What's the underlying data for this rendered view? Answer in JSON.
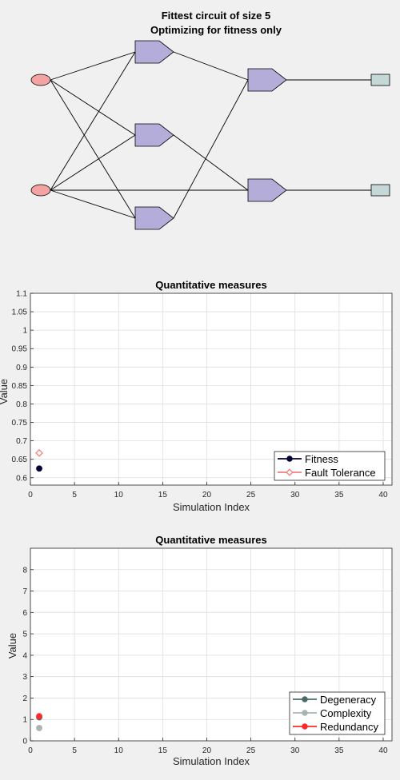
{
  "circuit": {
    "title_line1": "Fittest circuit of size 5",
    "title_line2": "Optimizing for fitness only",
    "colors": {
      "input": "#f4a3a3",
      "gate": "#b4acd9",
      "output": "#c5d8d8",
      "wire": "#000000"
    },
    "edges": [
      [
        "in1",
        "g1"
      ],
      [
        "in1",
        "g2"
      ],
      [
        "in1",
        "g3"
      ],
      [
        "in2",
        "g1"
      ],
      [
        "in2",
        "g2"
      ],
      [
        "in2",
        "g3"
      ],
      [
        "in2",
        "g5"
      ],
      [
        "g1",
        "g4"
      ],
      [
        "g2",
        "g5"
      ],
      [
        "g3",
        "g4"
      ],
      [
        "g4",
        "out1"
      ],
      [
        "g5",
        "out2"
      ]
    ]
  },
  "chart_data": [
    {
      "type": "scatter",
      "title": "Quantitative measures",
      "xlabel": "Simulation Index",
      "ylabel": "Value",
      "xlim": [
        0,
        41
      ],
      "ylim": [
        0.58,
        1.1
      ],
      "xticks": [
        "0",
        "5",
        "10",
        "15",
        "20",
        "25",
        "30",
        "35",
        "40"
      ],
      "yticks": [
        "0.6",
        "0.65",
        "0.7",
        "0.75",
        "0.8",
        "0.85",
        "0.9",
        "0.95",
        "1",
        "1.05",
        "1.1"
      ],
      "grid": true,
      "legend_position": "bottom-right",
      "series": [
        {
          "name": "Fitness",
          "color": "#000033",
          "marker": "filled-circle",
          "x": [
            1
          ],
          "y": [
            0.625
          ]
        },
        {
          "name": "Fault Tolerance",
          "color": "#f08080",
          "marker": "open-diamond",
          "x": [
            1
          ],
          "y": [
            0.667
          ]
        }
      ]
    },
    {
      "type": "scatter",
      "title": "Quantitative measures",
      "xlabel": "Simulation Index",
      "ylabel": "Value",
      "xlim": [
        0,
        41
      ],
      "ylim": [
        0,
        9
      ],
      "xticks": [
        "0",
        "5",
        "10",
        "15",
        "20",
        "25",
        "30",
        "35",
        "40"
      ],
      "yticks": [
        "0",
        "1",
        "2",
        "3",
        "4",
        "5",
        "6",
        "7",
        "8"
      ],
      "grid": true,
      "legend_position": "bottom-right",
      "series": [
        {
          "name": "Degeneracy",
          "color": "#4a6b6b",
          "marker": "filled-circle",
          "x": [
            1
          ],
          "y": [
            1.1
          ]
        },
        {
          "name": "Complexity",
          "color": "#a8b4b4",
          "marker": "filled-circle",
          "x": [
            1
          ],
          "y": [
            0.6
          ]
        },
        {
          "name": "Redundancy",
          "color": "#ff2a2a",
          "marker": "filled-circle",
          "x": [
            1
          ],
          "y": [
            1.15
          ]
        }
      ]
    }
  ]
}
